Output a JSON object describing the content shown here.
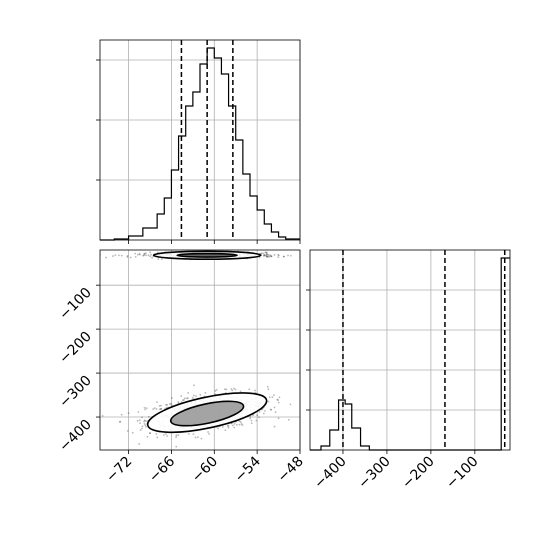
{
  "chart_data": [
    {
      "panel": "top-left",
      "type": "histogram",
      "title": "",
      "xlabel": "",
      "ylabel": "",
      "xlim": [
        -76,
        -48
      ],
      "grid": true,
      "bins": [
        {
          "x0": -76,
          "x1": -74,
          "count": 0
        },
        {
          "x0": -74,
          "x1": -72,
          "count": 0.5
        },
        {
          "x0": -72,
          "x1": -70,
          "count": 2
        },
        {
          "x0": -70,
          "x1": -68,
          "count": 6
        },
        {
          "x0": -68,
          "x1": -67,
          "count": 13
        },
        {
          "x0": -67,
          "x1": -66,
          "count": 21
        },
        {
          "x0": -66,
          "x1": -65,
          "count": 35
        },
        {
          "x0": -65,
          "x1": -64,
          "count": 52
        },
        {
          "x0": -64,
          "x1": -63,
          "count": 67
        },
        {
          "x0": -63,
          "x1": -62,
          "count": 74
        },
        {
          "x0": -62,
          "x1": -61,
          "count": 88
        },
        {
          "x0": -61,
          "x1": -60,
          "count": 96
        },
        {
          "x0": -60,
          "x1": -59,
          "count": 91
        },
        {
          "x0": -59,
          "x1": -58,
          "count": 83
        },
        {
          "x0": -58,
          "x1": -57,
          "count": 67
        },
        {
          "x0": -57,
          "x1": -56,
          "count": 50
        },
        {
          "x0": -56,
          "x1": -55,
          "count": 33
        },
        {
          "x0": -55,
          "x1": -54,
          "count": 22
        },
        {
          "x0": -54,
          "x1": -53,
          "count": 15
        },
        {
          "x0": -53,
          "x1": -52,
          "count": 8
        },
        {
          "x0": -52,
          "x1": -51,
          "count": 4
        },
        {
          "x0": -51,
          "x1": -50,
          "count": 1.5
        },
        {
          "x0": -50,
          "x1": -48,
          "count": 0.5
        }
      ],
      "ymax": 100,
      "ytick_values": [
        30,
        60,
        90
      ],
      "quantile_lines": [
        -64.6,
        -61.0,
        -57.4
      ],
      "xticks": [
        -72,
        -66,
        -60,
        -54,
        -48
      ],
      "xtick_labels": [
        "−72",
        "−66",
        "−60",
        "−54",
        "−48"
      ]
    },
    {
      "panel": "bottom-left",
      "type": "scatter",
      "title": "",
      "xlabel": "",
      "ylabel": "",
      "xlim": [
        -76,
        -48
      ],
      "ylim": [
        -475,
        -20
      ],
      "grid": true,
      "xticks": [
        -72,
        -66,
        -60,
        -54,
        -48
      ],
      "xtick_labels": [
        "−72",
        "−66",
        "−60",
        "−54",
        "−48"
      ],
      "yticks": [
        -100,
        -200,
        -300,
        -400
      ],
      "ytick_labels": [
        "−100",
        "−200",
        "−300",
        "−400"
      ],
      "clusters": [
        {
          "cx": -61,
          "cy": -390,
          "sx": 4.2,
          "sy": 22,
          "rho": 0.4,
          "n": 900
        },
        {
          "cx": -61,
          "cy": -32,
          "sx": 5.0,
          "sy": 3,
          "rho": 0.0,
          "n": 450
        }
      ],
      "contours": [
        {
          "cx": -61,
          "cy": -390,
          "rx": 8.5,
          "ry": 35,
          "angle_deg": -12,
          "shade": "#ffffff"
        },
        {
          "cx": -61,
          "cy": -392,
          "rx": 5.2,
          "ry": 22,
          "angle_deg": -12,
          "shade": "#9a9a9a"
        },
        {
          "cx": -61,
          "cy": -32,
          "rx": 7.5,
          "ry": 9,
          "angle_deg": 0,
          "shade": "#ffffff"
        },
        {
          "cx": -61,
          "cy": -32,
          "rx": 4.2,
          "ry": 4,
          "angle_deg": 0,
          "shade": "#555555"
        }
      ]
    },
    {
      "panel": "bottom-right",
      "type": "histogram",
      "title": "",
      "xlabel": "",
      "ylabel": "",
      "xlim": [
        -475,
        -20
      ],
      "grid": true,
      "bins": [
        {
          "x0": -475,
          "x1": -450,
          "count": 0
        },
        {
          "x0": -450,
          "x1": -430,
          "count": 2
        },
        {
          "x0": -430,
          "x1": -410,
          "count": 10
        },
        {
          "x0": -410,
          "x1": -395,
          "count": 25
        },
        {
          "x0": -395,
          "x1": -380,
          "count": 23
        },
        {
          "x0": -380,
          "x1": -360,
          "count": 11
        },
        {
          "x0": -360,
          "x1": -340,
          "count": 2
        },
        {
          "x0": -340,
          "x1": -40,
          "count": 0
        },
        {
          "x0": -40,
          "x1": -28,
          "count": 96
        },
        {
          "x0": -28,
          "x1": -20,
          "count": 96
        }
      ],
      "ymax": 100,
      "ytick_values": [
        20,
        40,
        60,
        80
      ],
      "quantile_lines": [
        -400,
        -168,
        -32
      ],
      "xticks": [
        -400,
        -300,
        -200,
        -100
      ],
      "xtick_labels": [
        "−400",
        "−300",
        "−200",
        "−100"
      ]
    }
  ]
}
